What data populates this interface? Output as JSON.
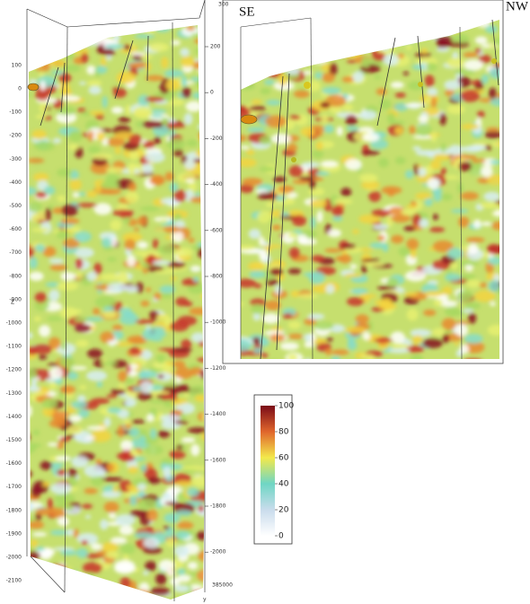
{
  "left_panel": {
    "axis_label": "Z",
    "left_ticks": [
      "100",
      "0",
      "-100",
      "-200",
      "-300",
      "-400",
      "-500",
      "-600",
      "-700",
      "-800",
      "-900",
      "-1000",
      "-1100",
      "-1200",
      "-1300",
      "-1400",
      "-1500",
      "-1600",
      "-1700",
      "-1800",
      "-1900",
      "-2000",
      "-2100"
    ],
    "right_ticks": [
      "200",
      "0",
      "-200",
      "-400",
      "-600",
      "-800",
      "-1000",
      "-1200",
      "-1400",
      "-1600",
      "-1800",
      "-2000"
    ],
    "top_label": "300",
    "bottom_label": "385000",
    "corner_label": "y"
  },
  "right_panel": {
    "left_label": "SE",
    "right_label": "NW"
  },
  "colorbar": {
    "ticks": [
      "100",
      "80",
      "60",
      "40",
      "20",
      "0"
    ]
  }
}
